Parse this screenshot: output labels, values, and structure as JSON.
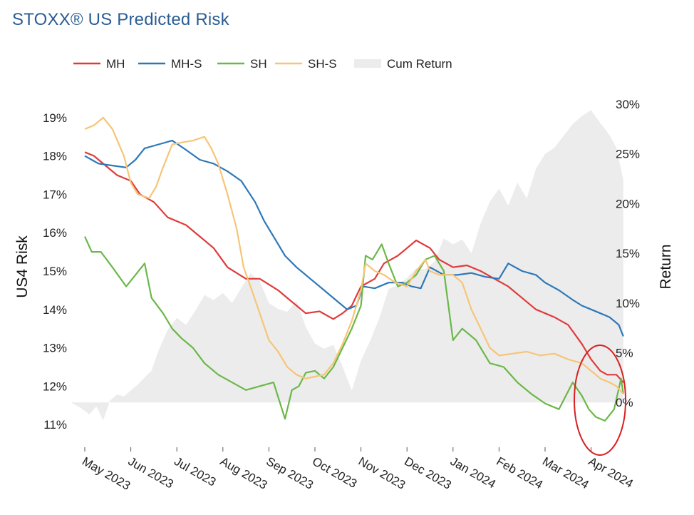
{
  "chart_data": {
    "type": "line",
    "title": "STOXX® US Predicted Risk",
    "ylabel": "US4 Risk",
    "y2label": "Return",
    "ylim": [
      10.8,
      19.35
    ],
    "y2lim": [
      -3,
      30
    ],
    "yticks": [
      "11%",
      "12%",
      "13%",
      "14%",
      "15%",
      "16%",
      "17%",
      "18%",
      "19%"
    ],
    "y2ticks": [
      "0%",
      "5%",
      "10%",
      "15%",
      "20%",
      "25%",
      "30%"
    ],
    "categories": [
      "May 2023",
      "Jun 2023",
      "Jul 2023",
      "Aug 2023",
      "Sep 2023",
      "Oct 2023",
      "Nov 2023",
      "Dec 2023",
      "Jan 2024",
      "Feb 2024",
      "Mar 2024",
      "Apr 2024"
    ],
    "legend_position": "top",
    "grid": false,
    "series": [
      {
        "name": "MH",
        "color": "#e03b3b",
        "axis": "left",
        "x": [
          0.0,
          0.2,
          0.45,
          0.7,
          1.0,
          1.2,
          1.5,
          1.8,
          2.2,
          2.5,
          2.8,
          3.1,
          3.5,
          3.8,
          4.2,
          4.5,
          4.8,
          5.1,
          5.4,
          5.6,
          5.8,
          6.0,
          6.3,
          6.5,
          6.8,
          7.0,
          7.2,
          7.5,
          7.7,
          8.0,
          8.3,
          8.6,
          8.9,
          9.2,
          9.5,
          9.8,
          10.0,
          10.2,
          10.5,
          10.8,
          11.0,
          11.2,
          11.35,
          11.55,
          11.7
        ],
        "values": [
          18.1,
          18.0,
          17.75,
          17.5,
          17.35,
          17.0,
          16.8,
          16.4,
          16.2,
          15.9,
          15.6,
          15.1,
          14.8,
          14.8,
          14.5,
          14.2,
          13.9,
          13.95,
          13.75,
          13.9,
          14.1,
          14.6,
          14.8,
          15.2,
          15.4,
          15.6,
          15.8,
          15.6,
          15.3,
          15.1,
          15.15,
          15.0,
          14.8,
          14.6,
          14.3,
          14.0,
          13.9,
          13.8,
          13.6,
          13.1,
          12.7,
          12.4,
          12.3,
          12.3,
          12.1
        ]
      },
      {
        "name": "MH-S",
        "color": "#2e78b8",
        "axis": "left",
        "x": [
          0.0,
          0.3,
          0.6,
          0.9,
          1.1,
          1.3,
          1.6,
          1.9,
          2.15,
          2.5,
          2.8,
          3.1,
          3.4,
          3.7,
          3.9,
          4.1,
          4.35,
          4.6,
          4.9,
          5.2,
          5.5,
          5.7,
          5.9,
          6.05,
          6.3,
          6.6,
          6.9,
          7.1,
          7.3,
          7.5,
          7.8,
          8.1,
          8.4,
          8.7,
          9.0,
          9.2,
          9.5,
          9.8,
          10.0,
          10.3,
          10.6,
          10.8,
          11.0,
          11.2,
          11.4,
          11.6,
          11.7
        ],
        "values": [
          18.0,
          17.8,
          17.75,
          17.7,
          17.9,
          18.2,
          18.3,
          18.4,
          18.2,
          17.9,
          17.8,
          17.6,
          17.35,
          16.8,
          16.3,
          15.9,
          15.4,
          15.1,
          14.8,
          14.5,
          14.2,
          14.0,
          14.1,
          14.6,
          14.55,
          14.7,
          14.7,
          14.6,
          14.55,
          15.1,
          14.9,
          14.9,
          14.95,
          14.85,
          14.8,
          15.2,
          15.0,
          14.9,
          14.7,
          14.5,
          14.25,
          14.1,
          14.0,
          13.9,
          13.8,
          13.6,
          13.3
        ]
      },
      {
        "name": "SH",
        "color": "#6ab848",
        "axis": "left",
        "x": [
          0.0,
          0.15,
          0.35,
          0.6,
          0.9,
          1.1,
          1.3,
          1.45,
          1.7,
          1.9,
          2.1,
          2.35,
          2.6,
          2.9,
          3.2,
          3.5,
          3.8,
          4.1,
          4.35,
          4.5,
          4.65,
          4.8,
          5.0,
          5.2,
          5.4,
          5.6,
          5.8,
          6.0,
          6.1,
          6.25,
          6.45,
          6.6,
          6.8,
          7.0,
          7.2,
          7.4,
          7.6,
          7.8,
          8.0,
          8.2,
          8.5,
          8.8,
          9.1,
          9.4,
          9.7,
          10.0,
          10.3,
          10.6,
          10.8,
          10.95,
          11.1,
          11.3,
          11.5,
          11.65,
          11.7
        ],
        "values": [
          15.9,
          15.5,
          15.5,
          15.1,
          14.6,
          14.9,
          15.2,
          14.3,
          13.9,
          13.5,
          13.25,
          13.0,
          12.6,
          12.3,
          12.1,
          11.9,
          12.0,
          12.1,
          11.15,
          11.9,
          12.0,
          12.35,
          12.4,
          12.2,
          12.5,
          13.0,
          13.5,
          14.1,
          15.4,
          15.3,
          15.7,
          15.2,
          14.6,
          14.7,
          14.9,
          15.3,
          15.4,
          15.0,
          13.2,
          13.5,
          13.2,
          12.6,
          12.5,
          12.1,
          11.8,
          11.55,
          11.4,
          12.1,
          11.75,
          11.4,
          11.2,
          11.1,
          11.4,
          12.2,
          11.8
        ]
      },
      {
        "name": "SH-S",
        "color": "#f6c577",
        "axis": "left",
        "x": [
          0.0,
          0.2,
          0.4,
          0.6,
          0.85,
          1.0,
          1.15,
          1.4,
          1.55,
          1.7,
          1.9,
          2.1,
          2.35,
          2.6,
          2.75,
          2.9,
          3.1,
          3.3,
          3.45,
          3.6,
          3.8,
          4.0,
          4.2,
          4.4,
          4.6,
          4.8,
          5.0,
          5.2,
          5.4,
          5.6,
          5.8,
          6.0,
          6.1,
          6.3,
          6.5,
          6.75,
          7.0,
          7.2,
          7.4,
          7.5,
          7.7,
          8.0,
          8.2,
          8.4,
          8.6,
          8.8,
          9.0,
          9.3,
          9.6,
          9.9,
          10.2,
          10.5,
          10.8,
          11.0,
          11.2,
          11.4,
          11.55,
          11.7
        ],
        "values": [
          18.7,
          18.8,
          19.0,
          18.7,
          18.0,
          17.3,
          17.0,
          16.9,
          17.2,
          17.7,
          18.3,
          18.35,
          18.4,
          18.5,
          18.2,
          17.8,
          17.0,
          16.1,
          15.1,
          14.6,
          13.9,
          13.2,
          12.9,
          12.5,
          12.3,
          12.2,
          12.25,
          12.3,
          12.6,
          13.1,
          13.7,
          14.5,
          15.2,
          15.0,
          14.9,
          14.7,
          14.6,
          15.0,
          15.3,
          15.0,
          14.9,
          14.9,
          14.7,
          14.0,
          13.5,
          13.0,
          12.8,
          12.85,
          12.9,
          12.8,
          12.85,
          12.7,
          12.6,
          12.4,
          12.2,
          12.1,
          12.0,
          11.8
        ]
      },
      {
        "name": "Cum Return",
        "color": "#ececec",
        "axis": "right",
        "type": "area",
        "x": [
          -0.3,
          -0.1,
          0.1,
          0.25,
          0.4,
          0.55,
          0.7,
          0.85,
          1.0,
          1.15,
          1.3,
          1.45,
          1.6,
          1.8,
          2.0,
          2.2,
          2.4,
          2.6,
          2.8,
          3.0,
          3.2,
          3.4,
          3.6,
          3.8,
          4.0,
          4.2,
          4.4,
          4.6,
          4.8,
          5.0,
          5.2,
          5.4,
          5.6,
          5.8,
          6.0,
          6.2,
          6.4,
          6.6,
          6.8,
          7.0,
          7.2,
          7.4,
          7.6,
          7.8,
          8.0,
          8.2,
          8.4,
          8.6,
          8.8,
          9.0,
          9.2,
          9.4,
          9.6,
          9.8,
          10.0,
          10.2,
          10.4,
          10.6,
          10.8,
          11.0,
          11.2,
          11.4,
          11.55,
          11.7
        ],
        "values": [
          0,
          -0.5,
          -1.2,
          -0.4,
          -1.8,
          0.2,
          0.8,
          0.6,
          1.2,
          1.8,
          2.5,
          3.2,
          5.2,
          7.3,
          8.5,
          7.8,
          9.2,
          10.8,
          10.3,
          11.0,
          10.0,
          11.5,
          13.0,
          12.2,
          10.0,
          9.4,
          9.1,
          10.2,
          7.6,
          5.9,
          5.4,
          5.8,
          3.6,
          1.2,
          4.2,
          6.2,
          8.5,
          11.4,
          11.8,
          12.5,
          13.5,
          13.4,
          14.2,
          16.5,
          15.9,
          16.4,
          15.0,
          18.0,
          20.2,
          21.5,
          19.8,
          22.1,
          20.5,
          23.5,
          25.0,
          25.6,
          26.8,
          28.0,
          28.8,
          29.4,
          28.1,
          26.9,
          25.6,
          22.4
        ]
      }
    ]
  }
}
